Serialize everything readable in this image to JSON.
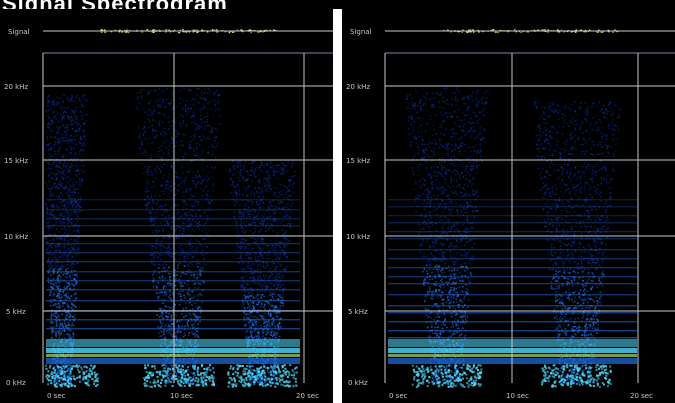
{
  "header": {
    "title": "Signal Spectrogram"
  },
  "colors": {
    "background": "#000000",
    "grid": "#c8c8c8",
    "low": "#0a2c8c",
    "mid": "#1e6ee6",
    "high": "#50dcff",
    "peak": "#d2ff78"
  },
  "panels": [
    {
      "signal_label": "Signal",
      "y_ticks": [
        "20 kHz",
        "15 kHz",
        "10 kHz",
        "5 kHz",
        "0 kHz"
      ],
      "x_ticks": [
        "0 sec",
        "10 sec",
        "20 sec"
      ]
    },
    {
      "signal_label": "Signal",
      "y_ticks": [
        "20 kHz",
        "15 kHz",
        "10 kHz",
        "5 kHz",
        "0 kHz"
      ],
      "x_ticks": [
        "0 sec",
        "10 sec",
        "20 sec"
      ]
    }
  ]
}
